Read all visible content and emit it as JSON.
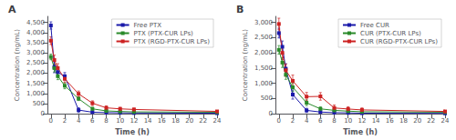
{
  "chart_data": [
    {
      "type": "line",
      "title": "A",
      "x_label": "Time (h)",
      "y_label": "Concentration (ng/mL)",
      "x": [
        0,
        0.5,
        1,
        2,
        4,
        6,
        8,
        10,
        12,
        24
      ],
      "series": [
        {
          "name": "Free PTX",
          "color": "#1a1aaa",
          "marker": "square",
          "values": [
            4350,
            2300,
            2050,
            1850,
            180,
            75,
            55,
            45,
            35,
            25
          ],
          "yerr": [
            180,
            280,
            230,
            180,
            120,
            40,
            35,
            28,
            22,
            15
          ]
        },
        {
          "name": "PTX (PTX-CUR LPs)",
          "color": "#2a8a2a",
          "marker": "square",
          "values": [
            2800,
            2250,
            1850,
            1380,
            740,
            240,
            140,
            110,
            90,
            75
          ],
          "yerr": [
            140,
            190,
            170,
            150,
            90,
            75,
            55,
            45,
            35,
            28
          ]
        },
        {
          "name": "PTX (RGD-PTX-CUR LPs)",
          "color": "#cc2222",
          "marker": "square",
          "values": [
            3600,
            2650,
            2250,
            1720,
            980,
            520,
            290,
            240,
            210,
            115
          ],
          "yerr": [
            190,
            240,
            220,
            190,
            140,
            115,
            95,
            75,
            65,
            45
          ]
        }
      ],
      "xlim": [
        -0.5,
        24
      ],
      "xticks": [
        0,
        2,
        4,
        6,
        8,
        10,
        12,
        14,
        16,
        18,
        20,
        22,
        24
      ],
      "ylim": [
        0,
        4800
      ],
      "yticks": [
        0,
        500,
        {
          "value": 1000,
          "label": "1,000"
        },
        {
          "value": 1500,
          "label": "1,500"
        },
        {
          "value": 2000,
          "label": "2,000"
        },
        {
          "value": 2500,
          "label": "2,500"
        },
        {
          "value": 3000,
          "label": "3,000"
        },
        {
          "value": 3500,
          "label": "3,500"
        },
        {
          "value": 4000,
          "label": "4,000"
        },
        {
          "value": 4500,
          "label": "4,500"
        }
      ],
      "legend": "upper right",
      "grid": false
    },
    {
      "type": "line",
      "title": "B",
      "x_label": "Time (h)",
      "y_label": "Concentration (ng/mL)",
      "x": [
        0,
        0.5,
        1,
        2,
        4,
        6,
        8,
        10,
        12,
        24
      ],
      "series": [
        {
          "name": "Free CUR",
          "color": "#1a1aaa",
          "marker": "square",
          "values": [
            2650,
            2200,
            1480,
            630,
            110,
            55,
            35,
            28,
            18,
            12
          ],
          "yerr": [
            160,
            190,
            165,
            150,
            70,
            35,
            28,
            18,
            12,
            8
          ]
        },
        {
          "name": "CUR (PTX-CUR LPs)",
          "color": "#2a8a2a",
          "marker": "square",
          "values": [
            2100,
            1680,
            1280,
            870,
            360,
            160,
            110,
            85,
            65,
            50
          ],
          "yerr": [
            140,
            160,
            150,
            140,
            95,
            65,
            45,
            38,
            28,
            22
          ]
        },
        {
          "name": "CUR (RGD-PTX-CUR LPs)",
          "color": "#cc2222",
          "marker": "square",
          "values": [
            2950,
            2000,
            1430,
            1080,
            560,
            570,
            190,
            155,
            125,
            75
          ],
          "yerr": [
            190,
            220,
            200,
            190,
            140,
            125,
            95,
            75,
            65,
            45
          ]
        }
      ],
      "xlim": [
        -0.5,
        24
      ],
      "xticks": [
        0,
        2,
        4,
        6,
        8,
        10,
        12,
        14,
        16,
        18,
        20,
        22,
        24
      ],
      "ylim": [
        0,
        3200
      ],
      "yticks": [
        0,
        500,
        {
          "value": 1000,
          "label": "1,000"
        },
        {
          "value": 1500,
          "label": "1,500"
        },
        {
          "value": 2000,
          "label": "2,000"
        },
        {
          "value": 2500,
          "label": "2,500"
        },
        {
          "value": 3000,
          "label": "3,000"
        }
      ],
      "legend": "upper right",
      "grid": false
    }
  ]
}
